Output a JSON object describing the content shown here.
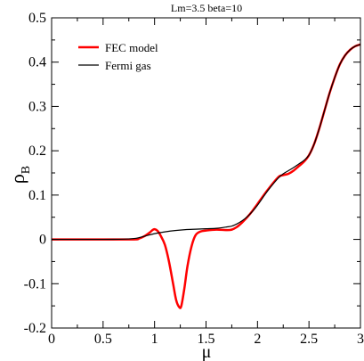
{
  "chart_data": {
    "type": "line",
    "title": "Lm=3.5 beta=10",
    "xlabel": "μ",
    "ylabel": "ρ",
    "ylabel_subscript": "B",
    "xlim": [
      0,
      3
    ],
    "ylim": [
      -0.2,
      0.5
    ],
    "xticks": [
      "0",
      "0.5",
      "1",
      "1.5",
      "2",
      "2.5",
      "3"
    ],
    "yticks": [
      "-0.2",
      "-0.1",
      "0",
      "0.1",
      "0.2",
      "0.3",
      "0.4",
      "0.5"
    ],
    "grid": false,
    "legend_position": "top-left",
    "series": [
      {
        "name": "FEC model",
        "color": "#ff0000",
        "x": [
          0,
          0.5,
          0.8,
          0.85,
          0.9,
          0.95,
          0.98,
          1.0,
          1.03,
          1.06,
          1.1,
          1.14,
          1.18,
          1.21,
          1.24,
          1.26,
          1.29,
          1.32,
          1.36,
          1.4,
          1.45,
          1.5,
          1.6,
          1.7,
          1.75,
          1.8,
          1.85,
          1.9,
          1.95,
          2.0,
          2.1,
          2.2,
          2.25,
          2.3,
          2.35,
          2.4,
          2.45,
          2.5,
          2.55,
          2.6,
          2.65,
          2.7,
          2.75,
          2.8,
          2.85,
          2.9,
          2.95,
          3.0
        ],
        "y": [
          0,
          0,
          0.0,
          0.002,
          0.007,
          0.015,
          0.021,
          0.023,
          0.019,
          0.008,
          -0.012,
          -0.05,
          -0.1,
          -0.137,
          -0.153,
          -0.15,
          -0.11,
          -0.06,
          -0.015,
          0.01,
          0.018,
          0.02,
          0.022,
          0.021,
          0.022,
          0.028,
          0.038,
          0.05,
          0.064,
          0.08,
          0.112,
          0.14,
          0.145,
          0.148,
          0.155,
          0.165,
          0.175,
          0.19,
          0.215,
          0.25,
          0.29,
          0.33,
          0.365,
          0.395,
          0.415,
          0.428,
          0.436,
          0.44
        ]
      },
      {
        "name": "Fermi gas",
        "color": "#000000",
        "x": [
          0,
          0.5,
          0.7,
          0.8,
          0.85,
          0.9,
          0.95,
          1.0,
          1.1,
          1.2,
          1.3,
          1.4,
          1.5,
          1.6,
          1.7,
          1.75,
          1.8,
          1.85,
          1.9,
          1.95,
          2.0,
          2.1,
          2.2,
          2.25,
          2.3,
          2.35,
          2.4,
          2.45,
          2.5,
          2.55,
          2.6,
          2.65,
          2.7,
          2.75,
          2.8,
          2.85,
          2.9,
          2.95,
          3.0
        ],
        "y": [
          0,
          0,
          0.0005,
          0.002,
          0.004,
          0.007,
          0.01,
          0.013,
          0.017,
          0.02,
          0.022,
          0.023,
          0.024,
          0.025,
          0.028,
          0.03,
          0.035,
          0.042,
          0.051,
          0.063,
          0.077,
          0.11,
          0.138,
          0.148,
          0.155,
          0.162,
          0.17,
          0.178,
          0.19,
          0.215,
          0.25,
          0.29,
          0.33,
          0.365,
          0.395,
          0.415,
          0.428,
          0.436,
          0.44
        ]
      }
    ]
  }
}
